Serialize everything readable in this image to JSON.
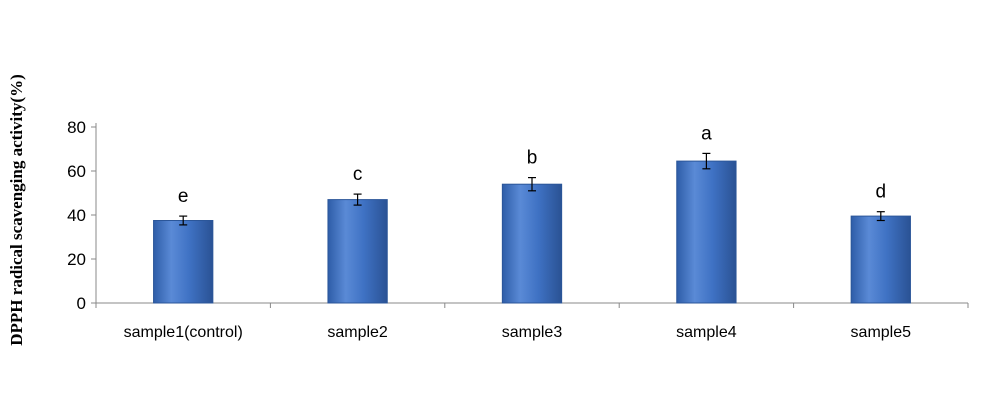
{
  "chart_data": {
    "type": "bar",
    "title": "",
    "xlabel": "",
    "ylabel": "DPPH radical scavenging activity(%)",
    "categories": [
      "sample1(control)",
      "sample2",
      "sample3",
      "sample4",
      "sample5"
    ],
    "values": [
      37.5,
      47,
      54,
      64.5,
      39.5
    ],
    "errors": [
      2,
      2.5,
      3,
      3.5,
      2
    ],
    "significance": [
      "e",
      "c",
      "b",
      "a",
      "d"
    ],
    "ylim": [
      0,
      80
    ],
    "yticks": [
      0,
      20,
      40,
      60,
      80
    ],
    "grid": false,
    "legend": "none",
    "bar_color": "#3a6fc4",
    "bar_edge_color": "#2b5699"
  }
}
